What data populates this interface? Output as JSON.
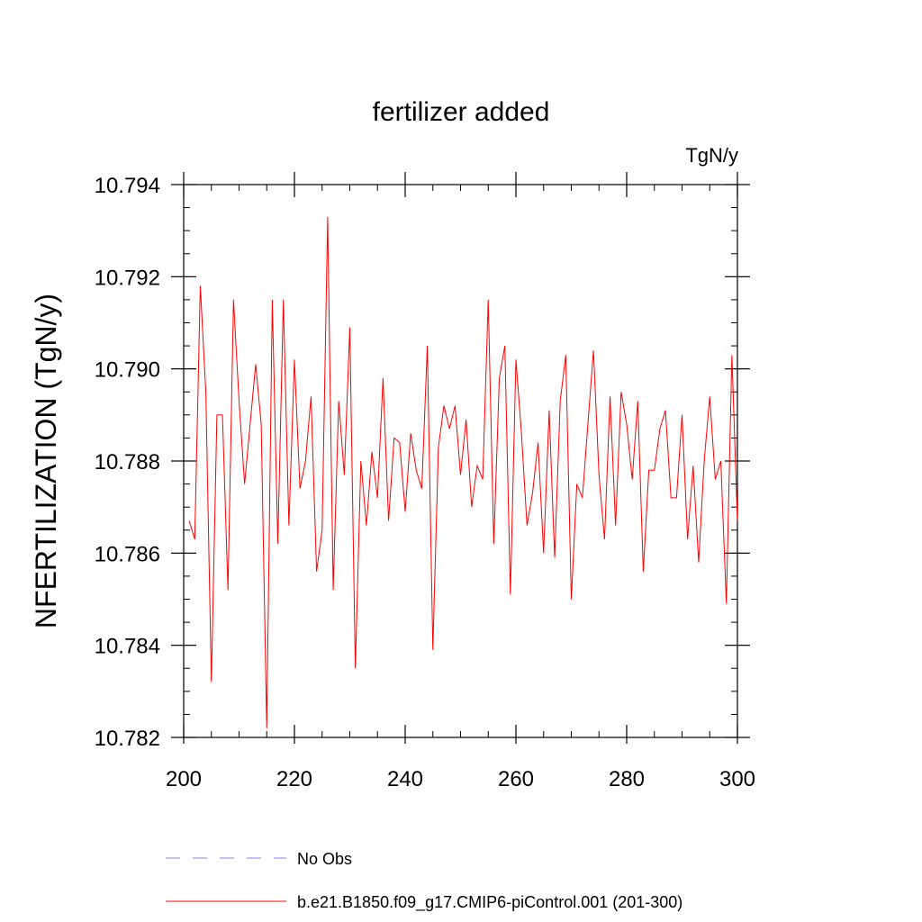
{
  "chart_data": {
    "type": "line",
    "title": "fertilizer added",
    "units_label": "TgN/y",
    "xlabel": "",
    "ylabel": "NFERTILIZATION  (TgN/y)",
    "xlim": [
      200,
      300
    ],
    "ylim": [
      10.782,
      10.794
    ],
    "x_ticks": [
      200,
      220,
      240,
      260,
      280,
      300
    ],
    "x_tick_labels": [
      "200",
      "220",
      "240",
      "260",
      "280",
      "300"
    ],
    "y_ticks": [
      10.782,
      10.784,
      10.786,
      10.788,
      10.79,
      10.792,
      10.794
    ],
    "y_tick_labels": [
      "10.782",
      "10.784",
      "10.786",
      "10.788",
      "10.790",
      "10.792",
      "10.794"
    ],
    "series": [
      {
        "name": "b.e21.B1850.f09_g17.CMIP6-piControl.001 (201-300)",
        "color": "#ff0000",
        "style": "solid",
        "x": [
          201,
          202,
          203,
          204,
          205,
          206,
          207,
          208,
          209,
          210,
          211,
          212,
          213,
          214,
          215,
          216,
          217,
          218,
          219,
          220,
          221,
          222,
          223,
          224,
          225,
          226,
          227,
          228,
          229,
          230,
          231,
          232,
          233,
          234,
          235,
          236,
          237,
          238,
          239,
          240,
          241,
          242,
          243,
          244,
          245,
          246,
          247,
          248,
          249,
          250,
          251,
          252,
          253,
          254,
          255,
          256,
          257,
          258,
          259,
          260,
          261,
          262,
          263,
          264,
          265,
          266,
          267,
          268,
          269,
          270,
          271,
          272,
          273,
          274,
          275,
          276,
          277,
          278,
          279,
          280,
          281,
          282,
          283,
          284,
          285,
          286,
          287,
          288,
          289,
          290,
          291,
          292,
          293,
          294,
          295,
          296,
          297,
          298,
          299,
          300
        ],
        "values": [
          10.7867,
          10.7863,
          10.7918,
          10.7895,
          10.7832,
          10.789,
          10.789,
          10.7852,
          10.7915,
          10.7893,
          10.7875,
          10.7888,
          10.7901,
          10.7888,
          10.7822,
          10.7915,
          10.7862,
          10.7915,
          10.7866,
          10.7902,
          10.7874,
          10.788,
          10.7894,
          10.7856,
          10.7865,
          10.7933,
          10.7852,
          10.7893,
          10.7877,
          10.7909,
          10.7835,
          10.788,
          10.7866,
          10.7882,
          10.7872,
          10.7898,
          10.7867,
          10.7885,
          10.7884,
          10.7869,
          10.7886,
          10.7878,
          10.7874,
          10.7905,
          10.7839,
          10.7883,
          10.7892,
          10.7887,
          10.7892,
          10.7877,
          10.7889,
          10.787,
          10.7879,
          10.7876,
          10.7915,
          10.7862,
          10.7898,
          10.7905,
          10.7851,
          10.7902,
          10.7886,
          10.7866,
          10.7873,
          10.7884,
          10.786,
          10.7891,
          10.7859,
          10.7893,
          10.7903,
          10.785,
          10.7875,
          10.7872,
          10.7888,
          10.7904,
          10.7877,
          10.7863,
          10.7894,
          10.7866,
          10.7895,
          10.7888,
          10.7876,
          10.7893,
          10.7856,
          10.7878,
          10.7878,
          10.7887,
          10.7891,
          10.7872,
          10.7872,
          10.789,
          10.7863,
          10.7879,
          10.7858,
          10.788,
          10.7894,
          10.7876,
          10.788,
          10.7849,
          10.7903,
          10.7867
        ]
      },
      {
        "name": "No Obs",
        "color": "#8a7fe0",
        "style": "dashed",
        "x": [],
        "values": []
      }
    ],
    "legend": [
      {
        "label": "No Obs",
        "color": "#8a7fe0",
        "style": "dashed"
      },
      {
        "label": "b.e21.B1850.f09_g17.CMIP6-piControl.001 (201-300)",
        "color": "#ff0000",
        "style": "solid"
      }
    ],
    "legend_position": "bottom-left",
    "grid": false
  }
}
